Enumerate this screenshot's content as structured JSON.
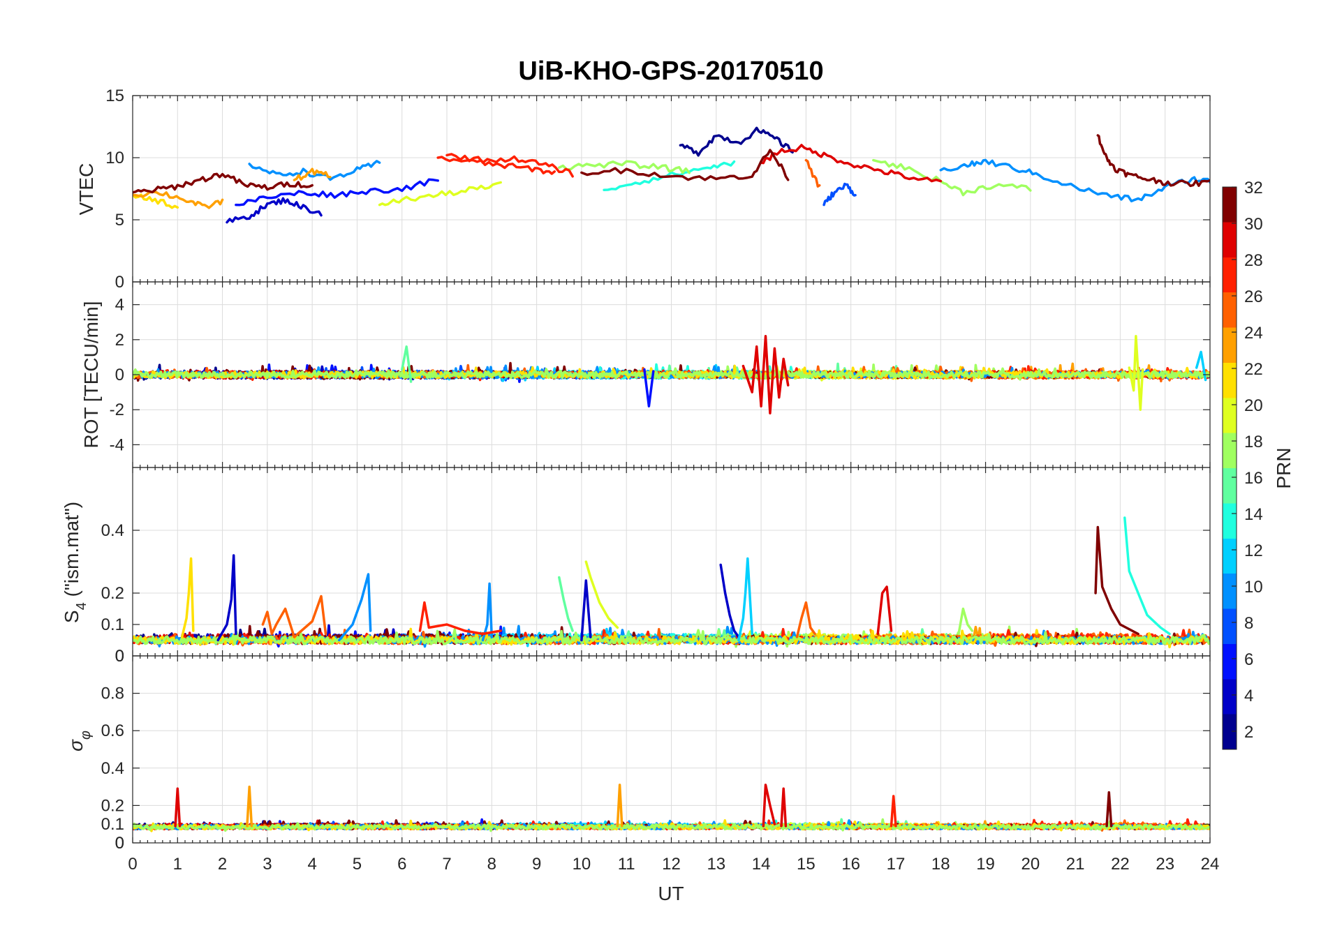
{
  "chart_data": [
    {
      "type": "line",
      "panel": "vtec",
      "title": "UiB-KHO-GPS-20170510",
      "ylabel": "VTEC",
      "xlabel": "",
      "xlim": [
        0,
        24
      ],
      "ylim": [
        0,
        15
      ],
      "yticks": [
        0,
        5,
        10,
        15
      ],
      "series": [
        {
          "prn": 3,
          "x": [
            2.1,
            2.6,
            3.0,
            3.4,
            3.8,
            4.2
          ],
          "y": [
            4.8,
            5.3,
            6.2,
            6.6,
            6.0,
            5.5
          ]
        },
        {
          "prn": 5,
          "x": [
            2.3,
            3.0,
            3.8,
            4.5,
            5.2,
            6.0,
            6.8
          ],
          "y": [
            6.2,
            6.8,
            7.2,
            7.0,
            7.3,
            7.5,
            8.2
          ]
        },
        {
          "prn": 2,
          "x": [
            12.2,
            12.6,
            13.0,
            13.5,
            13.9,
            14.3,
            14.7
          ],
          "y": [
            11.0,
            10.4,
            11.8,
            11.2,
            12.2,
            11.6,
            10.5
          ]
        },
        {
          "prn": 9,
          "x": [
            2.6,
            3.2,
            3.8,
            4.4,
            5.0,
            5.5
          ],
          "y": [
            9.5,
            8.6,
            8.9,
            8.3,
            9.0,
            9.6
          ]
        },
        {
          "prn": 10,
          "x": [
            18.0,
            18.6,
            19.0,
            19.6,
            20.2,
            21.0,
            21.8,
            22.4,
            23.0,
            23.6,
            24.0
          ],
          "y": [
            9.0,
            9.4,
            9.7,
            9.2,
            8.6,
            7.6,
            6.9,
            6.6,
            7.6,
            8.3,
            8.1
          ]
        },
        {
          "prn": 13,
          "x": [
            10.5,
            11.2,
            12.0,
            12.8,
            13.4
          ],
          "y": [
            7.4,
            8.0,
            8.6,
            9.2,
            9.6
          ]
        },
        {
          "prn": 8,
          "x": [
            15.4,
            15.6,
            15.9,
            16.1
          ],
          "y": [
            6.2,
            7.1,
            7.8,
            7.0
          ]
        },
        {
          "prn": 18,
          "x": [
            9.5,
            10.2,
            11.0,
            11.8,
            12.4
          ],
          "y": [
            9.2,
            9.4,
            9.5,
            9.2,
            8.9
          ]
        },
        {
          "prn": 17,
          "x": [
            16.5,
            17.2,
            18.0,
            18.5,
            19.2,
            20.0
          ],
          "y": [
            9.8,
            9.2,
            8.1,
            7.2,
            7.8,
            7.5
          ]
        },
        {
          "prn": 20,
          "x": [
            5.5,
            6.0,
            6.8,
            7.5,
            8.2
          ],
          "y": [
            6.2,
            6.6,
            7.0,
            7.4,
            7.8
          ]
        },
        {
          "prn": 21,
          "x": [
            0.0,
            0.5,
            1.0
          ],
          "y": [
            7.0,
            6.6,
            6.0
          ]
        },
        {
          "prn": 23,
          "x": [
            0.0,
            0.6,
            1.2,
            1.6,
            2.0
          ],
          "y": [
            7.0,
            7.2,
            6.6,
            6.0,
            6.5
          ]
        },
        {
          "prn": 24,
          "x": [
            3.6,
            4.0,
            4.4
          ],
          "y": [
            8.2,
            8.9,
            8.5
          ]
        },
        {
          "prn": 26,
          "x": [
            15.0,
            15.3
          ],
          "y": [
            9.8,
            7.6
          ]
        },
        {
          "prn": 27,
          "x": [
            6.8,
            7.5,
            8.2,
            8.9,
            9.4
          ],
          "y": [
            10.0,
            9.7,
            9.4,
            9.1,
            8.8
          ]
        },
        {
          "prn": 28,
          "x": [
            7.0,
            7.8,
            8.6,
            9.2,
            9.8
          ],
          "y": [
            10.2,
            9.8,
            9.9,
            9.4,
            8.7
          ]
        },
        {
          "prn": 30,
          "x": [
            14.0,
            14.4,
            14.9,
            15.4,
            16.0,
            16.6,
            17.2,
            18.0
          ],
          "y": [
            9.6,
            10.5,
            10.8,
            10.2,
            9.5,
            9.0,
            8.5,
            8.0
          ]
        },
        {
          "prn": 31,
          "x": [
            0.0,
            0.5,
            1.0,
            1.5,
            2.0,
            2.5,
            3.0,
            3.5,
            4.0
          ],
          "y": [
            7.2,
            7.4,
            7.7,
            8.2,
            8.7,
            7.8,
            7.6,
            7.9,
            7.8
          ]
        },
        {
          "prn": 32,
          "x": [
            21.5,
            21.7,
            21.9,
            22.2,
            22.6,
            23.0,
            23.5,
            24.0
          ],
          "y": [
            11.8,
            9.9,
            9.1,
            8.6,
            8.3,
            8.0,
            7.9,
            8.0
          ]
        },
        {
          "prn": 32,
          "x": [
            10.0,
            11.0,
            12.0,
            13.0,
            13.8,
            14.2,
            14.6
          ],
          "y": [
            8.8,
            9.0,
            8.5,
            8.3,
            8.6,
            10.6,
            8.4
          ]
        }
      ]
    },
    {
      "type": "line",
      "panel": "rot",
      "ylabel": "ROT [TECU/min]",
      "xlabel": "",
      "xlim": [
        0,
        24
      ],
      "ylim": [
        -5.3,
        5.3
      ],
      "yticks": [
        -4,
        -2,
        0,
        2,
        4
      ],
      "series": [
        {
          "prn": 30,
          "x": [
            13.6,
            13.8,
            13.9,
            14.0,
            14.1,
            14.2,
            14.3,
            14.4,
            14.5,
            14.6
          ],
          "y": [
            0.5,
            -1.0,
            1.6,
            -1.8,
            2.2,
            -2.2,
            1.5,
            -1.3,
            0.9,
            -0.6
          ]
        },
        {
          "prn": 19,
          "x": [
            22.2,
            22.3,
            22.35,
            22.45,
            22.5
          ],
          "y": [
            0.4,
            -0.9,
            2.2,
            -2.0,
            0.3
          ]
        },
        {
          "prn": 16,
          "x": [
            6.0,
            6.1,
            6.2
          ],
          "y": [
            0.3,
            1.6,
            -0.4
          ]
        },
        {
          "prn": 5,
          "x": [
            11.4,
            11.5,
            11.6
          ],
          "y": [
            0.3,
            -1.8,
            0.2
          ]
        },
        {
          "prn": 12,
          "x": [
            23.7,
            23.8,
            23.9
          ],
          "y": [
            0.4,
            1.3,
            -0.3
          ]
        }
      ]
    },
    {
      "type": "line",
      "panel": "s4",
      "ylabel": "S4 (\"ism.mat\")",
      "xlabel": "",
      "xlim": [
        0,
        24
      ],
      "ylim": [
        0,
        0.6
      ],
      "yticks": [
        0,
        0.1,
        0.2,
        0.4
      ],
      "series": [
        {
          "prn": 22,
          "x": [
            1.1,
            1.2,
            1.25,
            1.3,
            1.35
          ],
          "y": [
            0.06,
            0.12,
            0.2,
            0.31,
            0.08
          ]
        },
        {
          "prn": 4,
          "x": [
            1.9,
            2.1,
            2.2,
            2.25,
            2.3
          ],
          "y": [
            0.05,
            0.1,
            0.18,
            0.32,
            0.07
          ]
        },
        {
          "prn": 10,
          "x": [
            4.6,
            4.9,
            5.1,
            5.25,
            5.3
          ],
          "y": [
            0.05,
            0.1,
            0.18,
            0.26,
            0.08
          ]
        },
        {
          "prn": 9,
          "x": [
            7.8,
            7.9,
            7.95,
            8.0
          ],
          "y": [
            0.05,
            0.1,
            0.23,
            0.06
          ]
        },
        {
          "prn": 16,
          "x": [
            9.5,
            9.6,
            9.7,
            9.8
          ],
          "y": [
            0.25,
            0.18,
            0.12,
            0.08
          ]
        },
        {
          "prn": 19,
          "x": [
            10.1,
            10.2,
            10.4,
            10.6,
            10.8
          ],
          "y": [
            0.3,
            0.25,
            0.17,
            0.12,
            0.09
          ]
        },
        {
          "prn": 3,
          "x": [
            10.0,
            10.1,
            10.2
          ],
          "y": [
            0.05,
            0.24,
            0.06
          ]
        },
        {
          "prn": 3,
          "x": [
            13.1,
            13.2,
            13.3,
            13.4,
            13.5
          ],
          "y": [
            0.29,
            0.2,
            0.13,
            0.08,
            0.06
          ]
        },
        {
          "prn": 12,
          "x": [
            13.5,
            13.6,
            13.65,
            13.7,
            13.8
          ],
          "y": [
            0.05,
            0.12,
            0.2,
            0.31,
            0.07
          ]
        },
        {
          "prn": 29,
          "x": [
            16.6,
            16.7,
            16.8,
            16.9
          ],
          "y": [
            0.07,
            0.2,
            0.22,
            0.08
          ]
        },
        {
          "prn": 31,
          "x": [
            21.45,
            21.5,
            21.6,
            21.8,
            22.0,
            22.4
          ],
          "y": [
            0.2,
            0.41,
            0.22,
            0.15,
            0.1,
            0.07
          ]
        },
        {
          "prn": 13,
          "x": [
            22.1,
            22.2,
            22.4,
            22.6,
            22.9,
            23.1
          ],
          "y": [
            0.44,
            0.27,
            0.2,
            0.13,
            0.09,
            0.07
          ]
        },
        {
          "prn": 26,
          "x": [
            2.9,
            3.0,
            3.1,
            3.2,
            3.4,
            3.6,
            4.0,
            4.2,
            4.3
          ],
          "y": [
            0.1,
            0.14,
            0.07,
            0.1,
            0.15,
            0.06,
            0.11,
            0.19,
            0.07
          ]
        },
        {
          "prn": 28,
          "x": [
            6.4,
            6.5,
            6.6,
            7.0,
            7.4,
            7.8,
            8.2
          ],
          "y": [
            0.08,
            0.17,
            0.09,
            0.1,
            0.08,
            0.07,
            0.08
          ]
        },
        {
          "prn": 25,
          "x": [
            14.8,
            14.9,
            15.0,
            15.1,
            15.2
          ],
          "y": [
            0.06,
            0.12,
            0.17,
            0.09,
            0.07
          ]
        },
        {
          "prn": 17,
          "x": [
            18.4,
            18.5,
            18.6,
            18.7
          ],
          "y": [
            0.07,
            0.15,
            0.1,
            0.08
          ]
        }
      ]
    },
    {
      "type": "line",
      "panel": "sigma_phi",
      "ylabel": "σφ",
      "xlabel": "UT",
      "xlim": [
        0,
        24
      ],
      "ylim": [
        0,
        1
      ],
      "yticks": [
        0,
        0.1,
        0.2,
        0.4,
        0.6,
        0.8
      ],
      "xticks": [
        0,
        1,
        2,
        3,
        4,
        5,
        6,
        7,
        8,
        9,
        10,
        11,
        12,
        13,
        14,
        15,
        16,
        17,
        18,
        19,
        20,
        21,
        22,
        23,
        24
      ],
      "series": [
        {
          "prn": 30,
          "x": [
            0.95,
            1.0,
            1.05
          ],
          "y": [
            0.09,
            0.29,
            0.09
          ]
        },
        {
          "prn": 23,
          "x": [
            2.55,
            2.6,
            2.65
          ],
          "y": [
            0.09,
            0.3,
            0.09
          ]
        },
        {
          "prn": 24,
          "x": [
            10.8,
            10.85,
            10.9
          ],
          "y": [
            0.09,
            0.31,
            0.09
          ]
        },
        {
          "prn": 30,
          "x": [
            14.05,
            14.1,
            14.2,
            14.3
          ],
          "y": [
            0.09,
            0.31,
            0.2,
            0.1
          ]
        },
        {
          "prn": 29,
          "x": [
            14.45,
            14.5,
            14.55
          ],
          "y": [
            0.09,
            0.29,
            0.09
          ]
        },
        {
          "prn": 28,
          "x": [
            16.9,
            16.95,
            17.0
          ],
          "y": [
            0.09,
            0.25,
            0.09
          ]
        },
        {
          "prn": 31,
          "x": [
            21.7,
            21.75,
            21.8
          ],
          "y": [
            0.09,
            0.27,
            0.09
          ]
        }
      ]
    }
  ],
  "figure": {
    "title": "UiB-KHO-GPS-20170510",
    "colorbar": {
      "label": "PRN",
      "ticks": [
        2,
        4,
        6,
        8,
        10,
        12,
        14,
        16,
        18,
        20,
        22,
        24,
        26,
        28,
        30,
        32
      ],
      "range": [
        1,
        32
      ],
      "colors": [
        "#00008f",
        "#0000c8",
        "#0010ff",
        "#0050ff",
        "#0090ff",
        "#00d0ff",
        "#20ffdf",
        "#60ff9f",
        "#a0ff60",
        "#dfff20",
        "#ffe000",
        "#ffa000",
        "#ff6000",
        "#ff2000",
        "#df0000",
        "#800000"
      ]
    },
    "noise_seed": 20170510
  }
}
